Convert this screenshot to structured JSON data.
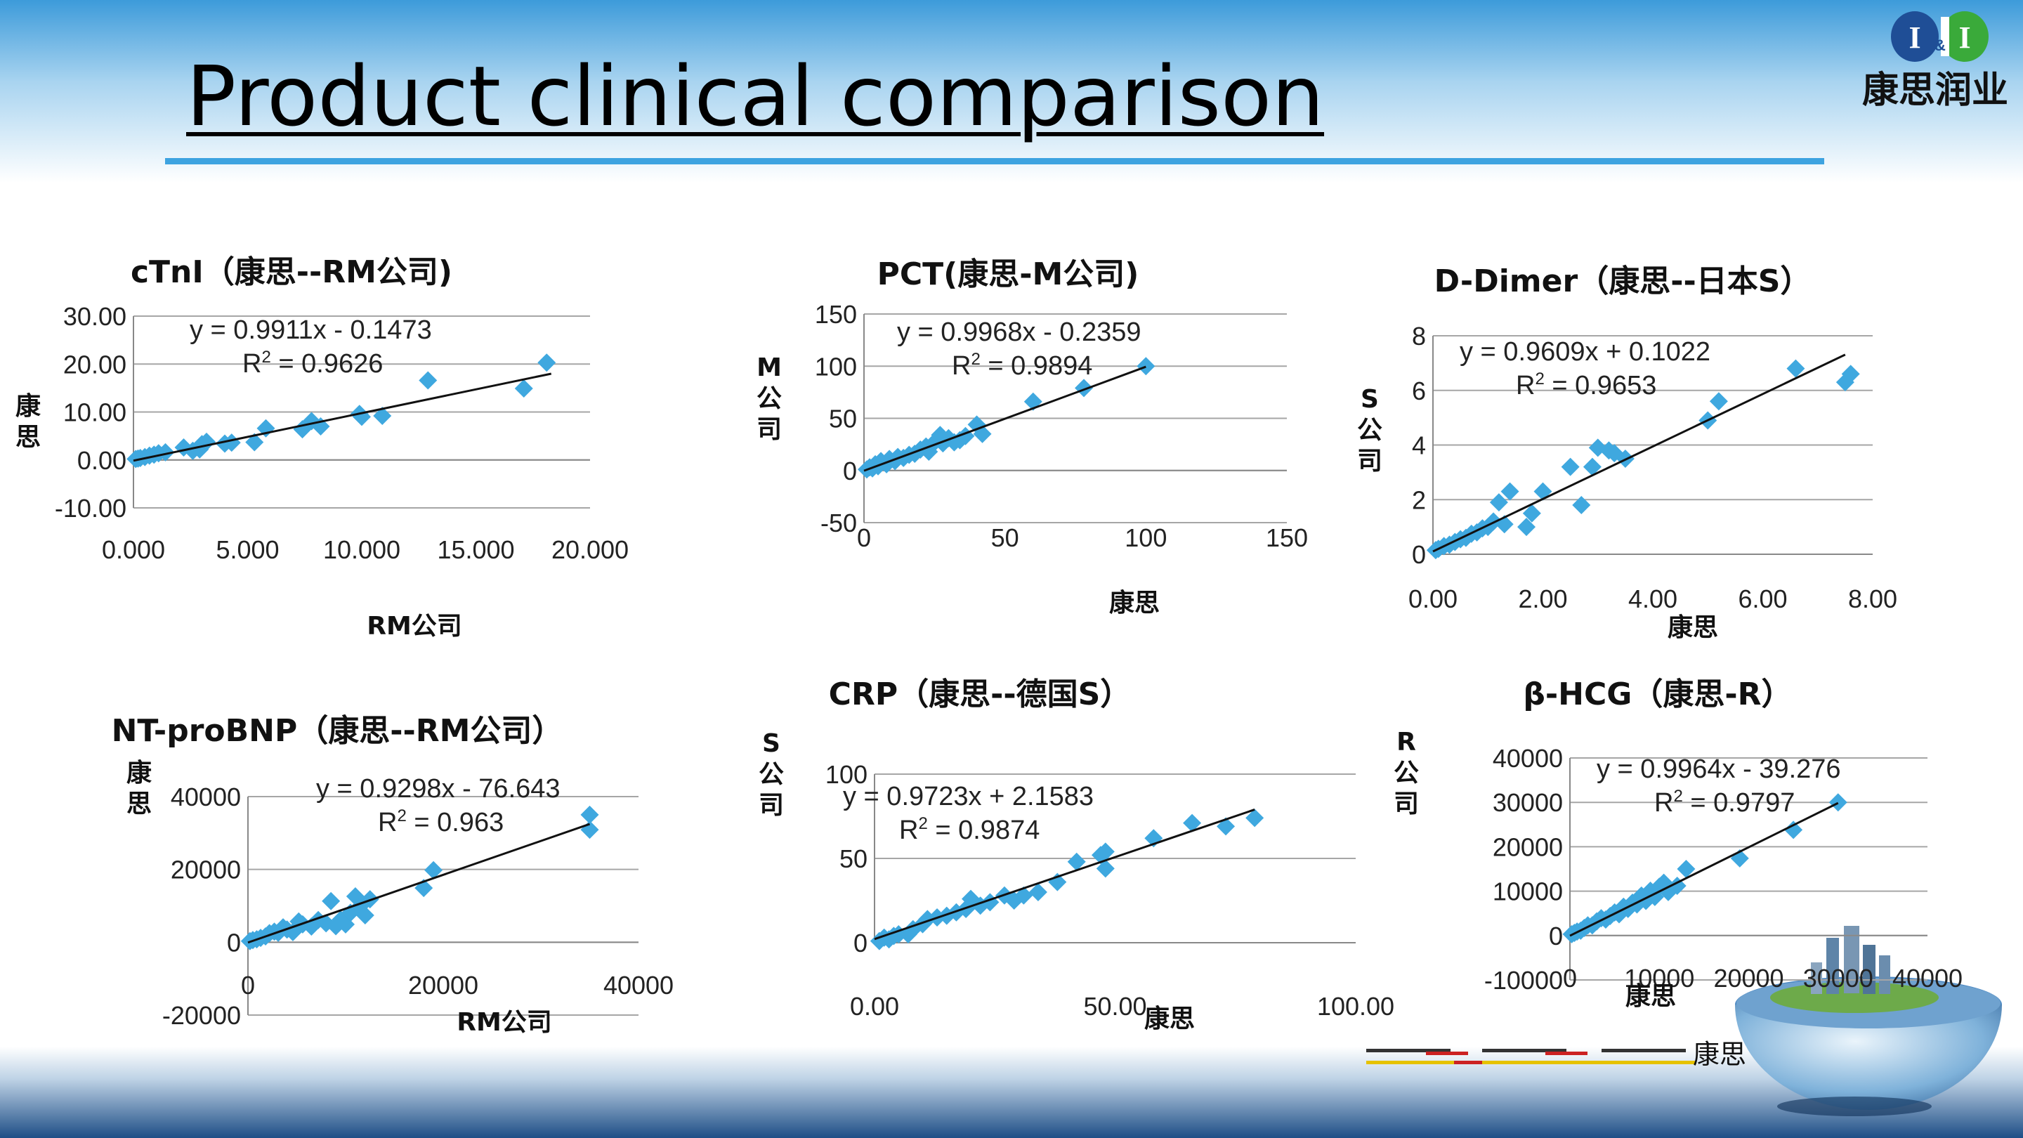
{
  "slide": {
    "title": "Product clinical comparison",
    "logo": {
      "mark_left": "I",
      "mark_amp": "&",
      "mark_right": "I",
      "text": "康思润业"
    },
    "footer_label": "康思"
  },
  "colors": {
    "marker": "#3FA8DF",
    "trend": "#111111",
    "grid": "#A6A6A6",
    "accent_bar": "#3DA3E0"
  },
  "chart_data": [
    {
      "id": "ctni",
      "type": "scatter",
      "title": "cTnI（康思--RM公司)",
      "xlabel": "RM公司",
      "ylabel": "康思",
      "xlim": [
        0,
        20
      ],
      "ylim": [
        -10,
        30
      ],
      "xticks": [
        "0.000",
        "5.000",
        "10.000",
        "15.000",
        "20.000"
      ],
      "yticks": [
        "-10.00",
        "0.00",
        "10.00",
        "20.00",
        "30.00"
      ],
      "equation": "y = 0.9911x - 0.1473",
      "r2_prefix": "R",
      "r2_value": " = 0.9626",
      "trend": {
        "slope": 0.9911,
        "intercept": -0.1473,
        "x": [
          0,
          18.3
        ]
      },
      "points": [
        [
          0.1,
          0.2
        ],
        [
          0.2,
          0.3
        ],
        [
          0.3,
          0.4
        ],
        [
          0.5,
          0.6
        ],
        [
          0.7,
          0.9
        ],
        [
          0.9,
          1.1
        ],
        [
          1.1,
          1.4
        ],
        [
          1.4,
          1.6
        ],
        [
          2.2,
          2.6
        ],
        [
          2.6,
          1.9
        ],
        [
          2.9,
          2.2
        ],
        [
          3.0,
          3.3
        ],
        [
          3.2,
          3.8
        ],
        [
          4.0,
          3.4
        ],
        [
          4.3,
          3.6
        ],
        [
          5.3,
          3.7
        ],
        [
          5.8,
          6.6
        ],
        [
          7.4,
          6.4
        ],
        [
          7.8,
          8.1
        ],
        [
          8.2,
          7.0
        ],
        [
          9.9,
          9.6
        ],
        [
          10.0,
          9.0
        ],
        [
          10.9,
          9.2
        ],
        [
          12.9,
          16.6
        ],
        [
          17.1,
          14.9
        ],
        [
          18.1,
          20.3
        ]
      ]
    },
    {
      "id": "pct",
      "type": "scatter",
      "title": "PCT(康思-M公司)",
      "xlabel": "康思",
      "ylabel": "M公司",
      "xlim": [
        0,
        150
      ],
      "ylim": [
        -50,
        150
      ],
      "xticks": [
        "0",
        "50",
        "100",
        "150"
      ],
      "yticks": [
        "-50",
        "0",
        "50",
        "100",
        "150"
      ],
      "equation": "y = 0.9968x - 0.2359",
      "r2_prefix": "R",
      "r2_value": " = 0.9894",
      "trend": {
        "slope": 0.9968,
        "intercept": -0.2359,
        "x": [
          0,
          100
        ]
      },
      "points": [
        [
          1,
          1
        ],
        [
          2,
          3
        ],
        [
          3,
          2
        ],
        [
          4,
          6
        ],
        [
          5,
          4
        ],
        [
          6,
          9
        ],
        [
          8,
          6
        ],
        [
          9,
          11
        ],
        [
          11,
          9
        ],
        [
          12,
          13
        ],
        [
          14,
          12
        ],
        [
          16,
          15
        ],
        [
          18,
          16
        ],
        [
          20,
          20
        ],
        [
          22,
          23
        ],
        [
          23,
          18
        ],
        [
          25,
          27
        ],
        [
          27,
          34
        ],
        [
          28,
          26
        ],
        [
          30,
          31
        ],
        [
          32,
          27
        ],
        [
          34,
          29
        ],
        [
          36,
          33
        ],
        [
          40,
          44
        ],
        [
          42,
          35
        ],
        [
          60,
          66
        ],
        [
          78,
          79
        ],
        [
          100,
          100
        ]
      ]
    },
    {
      "id": "ddimer",
      "type": "scatter",
      "title": "D-Dimer（康思--日本S）",
      "xlabel": "康思",
      "ylabel": "S公司",
      "xlim": [
        0,
        8
      ],
      "ylim": [
        0,
        8
      ],
      "xticks": [
        "0.00",
        "2.00",
        "4.00",
        "6.00",
        "8.00"
      ],
      "yticks": [
        "0",
        "2",
        "4",
        "6",
        "8"
      ],
      "equation": "y = 0.9609x + 0.1022",
      "r2_prefix": "R",
      "r2_value": " = 0.9653",
      "trend": {
        "slope": 0.9609,
        "intercept": 0.1022,
        "x": [
          0,
          7.5
        ]
      },
      "points": [
        [
          0.05,
          0.15
        ],
        [
          0.1,
          0.2
        ],
        [
          0.2,
          0.3
        ],
        [
          0.3,
          0.35
        ],
        [
          0.4,
          0.45
        ],
        [
          0.5,
          0.55
        ],
        [
          0.6,
          0.6
        ],
        [
          0.7,
          0.75
        ],
        [
          0.8,
          0.8
        ],
        [
          0.9,
          0.95
        ],
        [
          1.0,
          1.0
        ],
        [
          1.1,
          1.2
        ],
        [
          1.2,
          1.9
        ],
        [
          1.3,
          1.1
        ],
        [
          1.4,
          2.3
        ],
        [
          1.7,
          1.0
        ],
        [
          1.8,
          1.5
        ],
        [
          2.0,
          2.3
        ],
        [
          2.5,
          3.2
        ],
        [
          2.7,
          1.8
        ],
        [
          2.9,
          3.2
        ],
        [
          3.0,
          3.9
        ],
        [
          3.2,
          3.8
        ],
        [
          3.3,
          3.7
        ],
        [
          3.5,
          3.5
        ],
        [
          5.0,
          4.9
        ],
        [
          5.2,
          5.6
        ],
        [
          6.6,
          6.8
        ],
        [
          7.5,
          6.3
        ],
        [
          7.6,
          6.6
        ]
      ]
    },
    {
      "id": "ntprobnp",
      "type": "scatter",
      "title": "NT-proBNP（康思--RM公司）",
      "xlabel": "RM公司",
      "ylabel": "康思",
      "xlim": [
        0,
        40000
      ],
      "ylim": [
        -20000,
        40000
      ],
      "xticks": [
        "0",
        "20000",
        "40000"
      ],
      "yticks": [
        "-20000",
        "0",
        "20000",
        "40000"
      ],
      "equation": "y = 0.9298x - 76.643",
      "r2_prefix": "R",
      "r2_value": " = 0.963",
      "trend": {
        "slope": 0.9298,
        "intercept": -76.643,
        "x": [
          0,
          35000
        ]
      },
      "points": [
        [
          200,
          300
        ],
        [
          500,
          600
        ],
        [
          900,
          800
        ],
        [
          1300,
          1200
        ],
        [
          1800,
          1600
        ],
        [
          2200,
          2500
        ],
        [
          2700,
          2900
        ],
        [
          3100,
          2600
        ],
        [
          3600,
          4100
        ],
        [
          4000,
          3500
        ],
        [
          4600,
          2800
        ],
        [
          5200,
          5700
        ],
        [
          5600,
          4900
        ],
        [
          6500,
          4300
        ],
        [
          7200,
          6100
        ],
        [
          8000,
          5200
        ],
        [
          8500,
          11300
        ],
        [
          9000,
          4400
        ],
        [
          9500,
          6200
        ],
        [
          10000,
          4900
        ],
        [
          10500,
          8100
        ],
        [
          11000,
          12600
        ],
        [
          11500,
          9900
        ],
        [
          12000,
          7400
        ],
        [
          12500,
          11800
        ],
        [
          18000,
          14900
        ],
        [
          19000,
          19800
        ],
        [
          35000,
          35000
        ],
        [
          35000,
          30900
        ]
      ]
    },
    {
      "id": "crp",
      "type": "scatter",
      "title": "CRP（康思--德国S）",
      "xlabel": "康思",
      "ylabel": "S公司",
      "xlim": [
        0,
        100
      ],
      "ylim": [
        0,
        100
      ],
      "xticks": [
        "0.00",
        "50.00",
        "100.00"
      ],
      "yticks": [
        "0",
        "50",
        "100"
      ],
      "equation": "y = 0.9723x + 2.1583",
      "r2_prefix": "R",
      "r2_value": " = 0.9874",
      "trend": {
        "slope": 0.9723,
        "intercept": 2.1583,
        "x": [
          0,
          79
        ]
      },
      "points": [
        [
          1,
          1
        ],
        [
          2,
          3
        ],
        [
          3,
          2
        ],
        [
          4,
          4
        ],
        [
          5,
          5
        ],
        [
          7,
          5
        ],
        [
          8,
          8
        ],
        [
          10,
          11
        ],
        [
          11,
          14
        ],
        [
          13,
          15
        ],
        [
          15,
          16
        ],
        [
          17,
          18
        ],
        [
          19,
          20
        ],
        [
          20,
          26
        ],
        [
          22,
          22
        ],
        [
          24,
          24
        ],
        [
          27,
          28
        ],
        [
          29,
          25
        ],
        [
          31,
          28
        ],
        [
          34,
          30
        ],
        [
          38,
          36
        ],
        [
          42,
          48
        ],
        [
          47,
          52
        ],
        [
          48,
          54
        ],
        [
          48,
          44
        ],
        [
          58,
          62
        ],
        [
          66,
          71
        ],
        [
          73,
          69
        ],
        [
          79,
          74
        ]
      ]
    },
    {
      "id": "bhcg",
      "type": "scatter",
      "title": "β-HCG（康思-R）",
      "xlabel": "康思",
      "ylabel": "R公司",
      "xlim": [
        0,
        40000
      ],
      "ylim": [
        -10000,
        40000
      ],
      "xticks": [
        "0",
        "10000",
        "20000",
        "30000",
        "40000"
      ],
      "yticks": [
        "-10000",
        "0",
        "10000",
        "20000",
        "30000",
        "40000"
      ],
      "equation": "y = 0.9964x - 39.276",
      "r2_prefix": "R",
      "r2_value": " = 0.9797",
      "trend": {
        "slope": 0.9964,
        "intercept": -39.276,
        "x": [
          0,
          30000
        ]
      },
      "points": [
        [
          200,
          300
        ],
        [
          500,
          600
        ],
        [
          800,
          900
        ],
        [
          1200,
          1100
        ],
        [
          1600,
          1700
        ],
        [
          2000,
          2300
        ],
        [
          2500,
          2300
        ],
        [
          3000,
          3200
        ],
        [
          3500,
          3900
        ],
        [
          4000,
          3600
        ],
        [
          4500,
          4400
        ],
        [
          5000,
          5200
        ],
        [
          5500,
          4800
        ],
        [
          6000,
          6500
        ],
        [
          6500,
          6000
        ],
        [
          7000,
          7400
        ],
        [
          7500,
          7000
        ],
        [
          8000,
          9000
        ],
        [
          8500,
          7800
        ],
        [
          9000,
          10100
        ],
        [
          9500,
          8700
        ],
        [
          10000,
          11000
        ],
        [
          10500,
          11900
        ],
        [
          11000,
          9800
        ],
        [
          12000,
          11200
        ],
        [
          13000,
          15000
        ],
        [
          19000,
          17400
        ],
        [
          25000,
          23800
        ],
        [
          30000,
          30000
        ]
      ]
    }
  ]
}
